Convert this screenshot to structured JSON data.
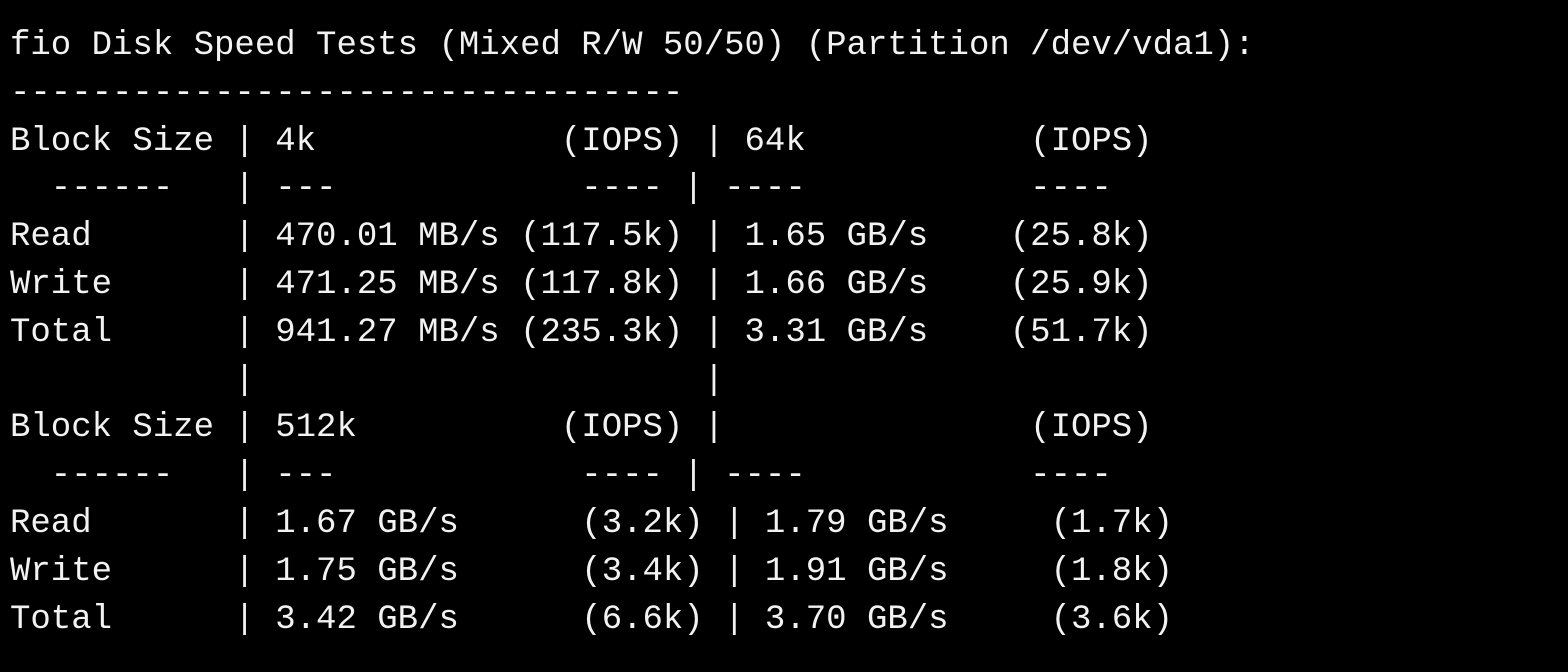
{
  "terminal": {
    "lines": [
      "fio Disk Speed Tests (Mixed R/W 50/50) (Partition /dev/vda1):",
      "---------------------------------",
      "Block Size | 4k            (IOPS) | 64k           (IOPS)",
      "  ------   | ---            ---- | ----           ----",
      "Read       | 470.01 MB/s (117.5k) | 1.65 GB/s    (25.8k)",
      "Write      | 471.25 MB/s (117.8k) | 1.66 GB/s    (25.9k)",
      "Total      | 941.27 MB/s (235.3k) | 3.31 GB/s    (51.7k)",
      "           |                      |",
      "Block Size | 512k          (IOPS) |               (IOPS)",
      "  ------   | ---            ---- | ----           ----",
      "Read       | 1.67 GB/s      (3.2k) | 1.79 GB/s     (1.7k)",
      "Write      | 1.75 GB/s      (3.4k) | 1.91 GB/s     (1.8k)",
      "Total      | 3.42 GB/s      (6.6k) | 3.70 GB/s     (3.6k)"
    ]
  }
}
